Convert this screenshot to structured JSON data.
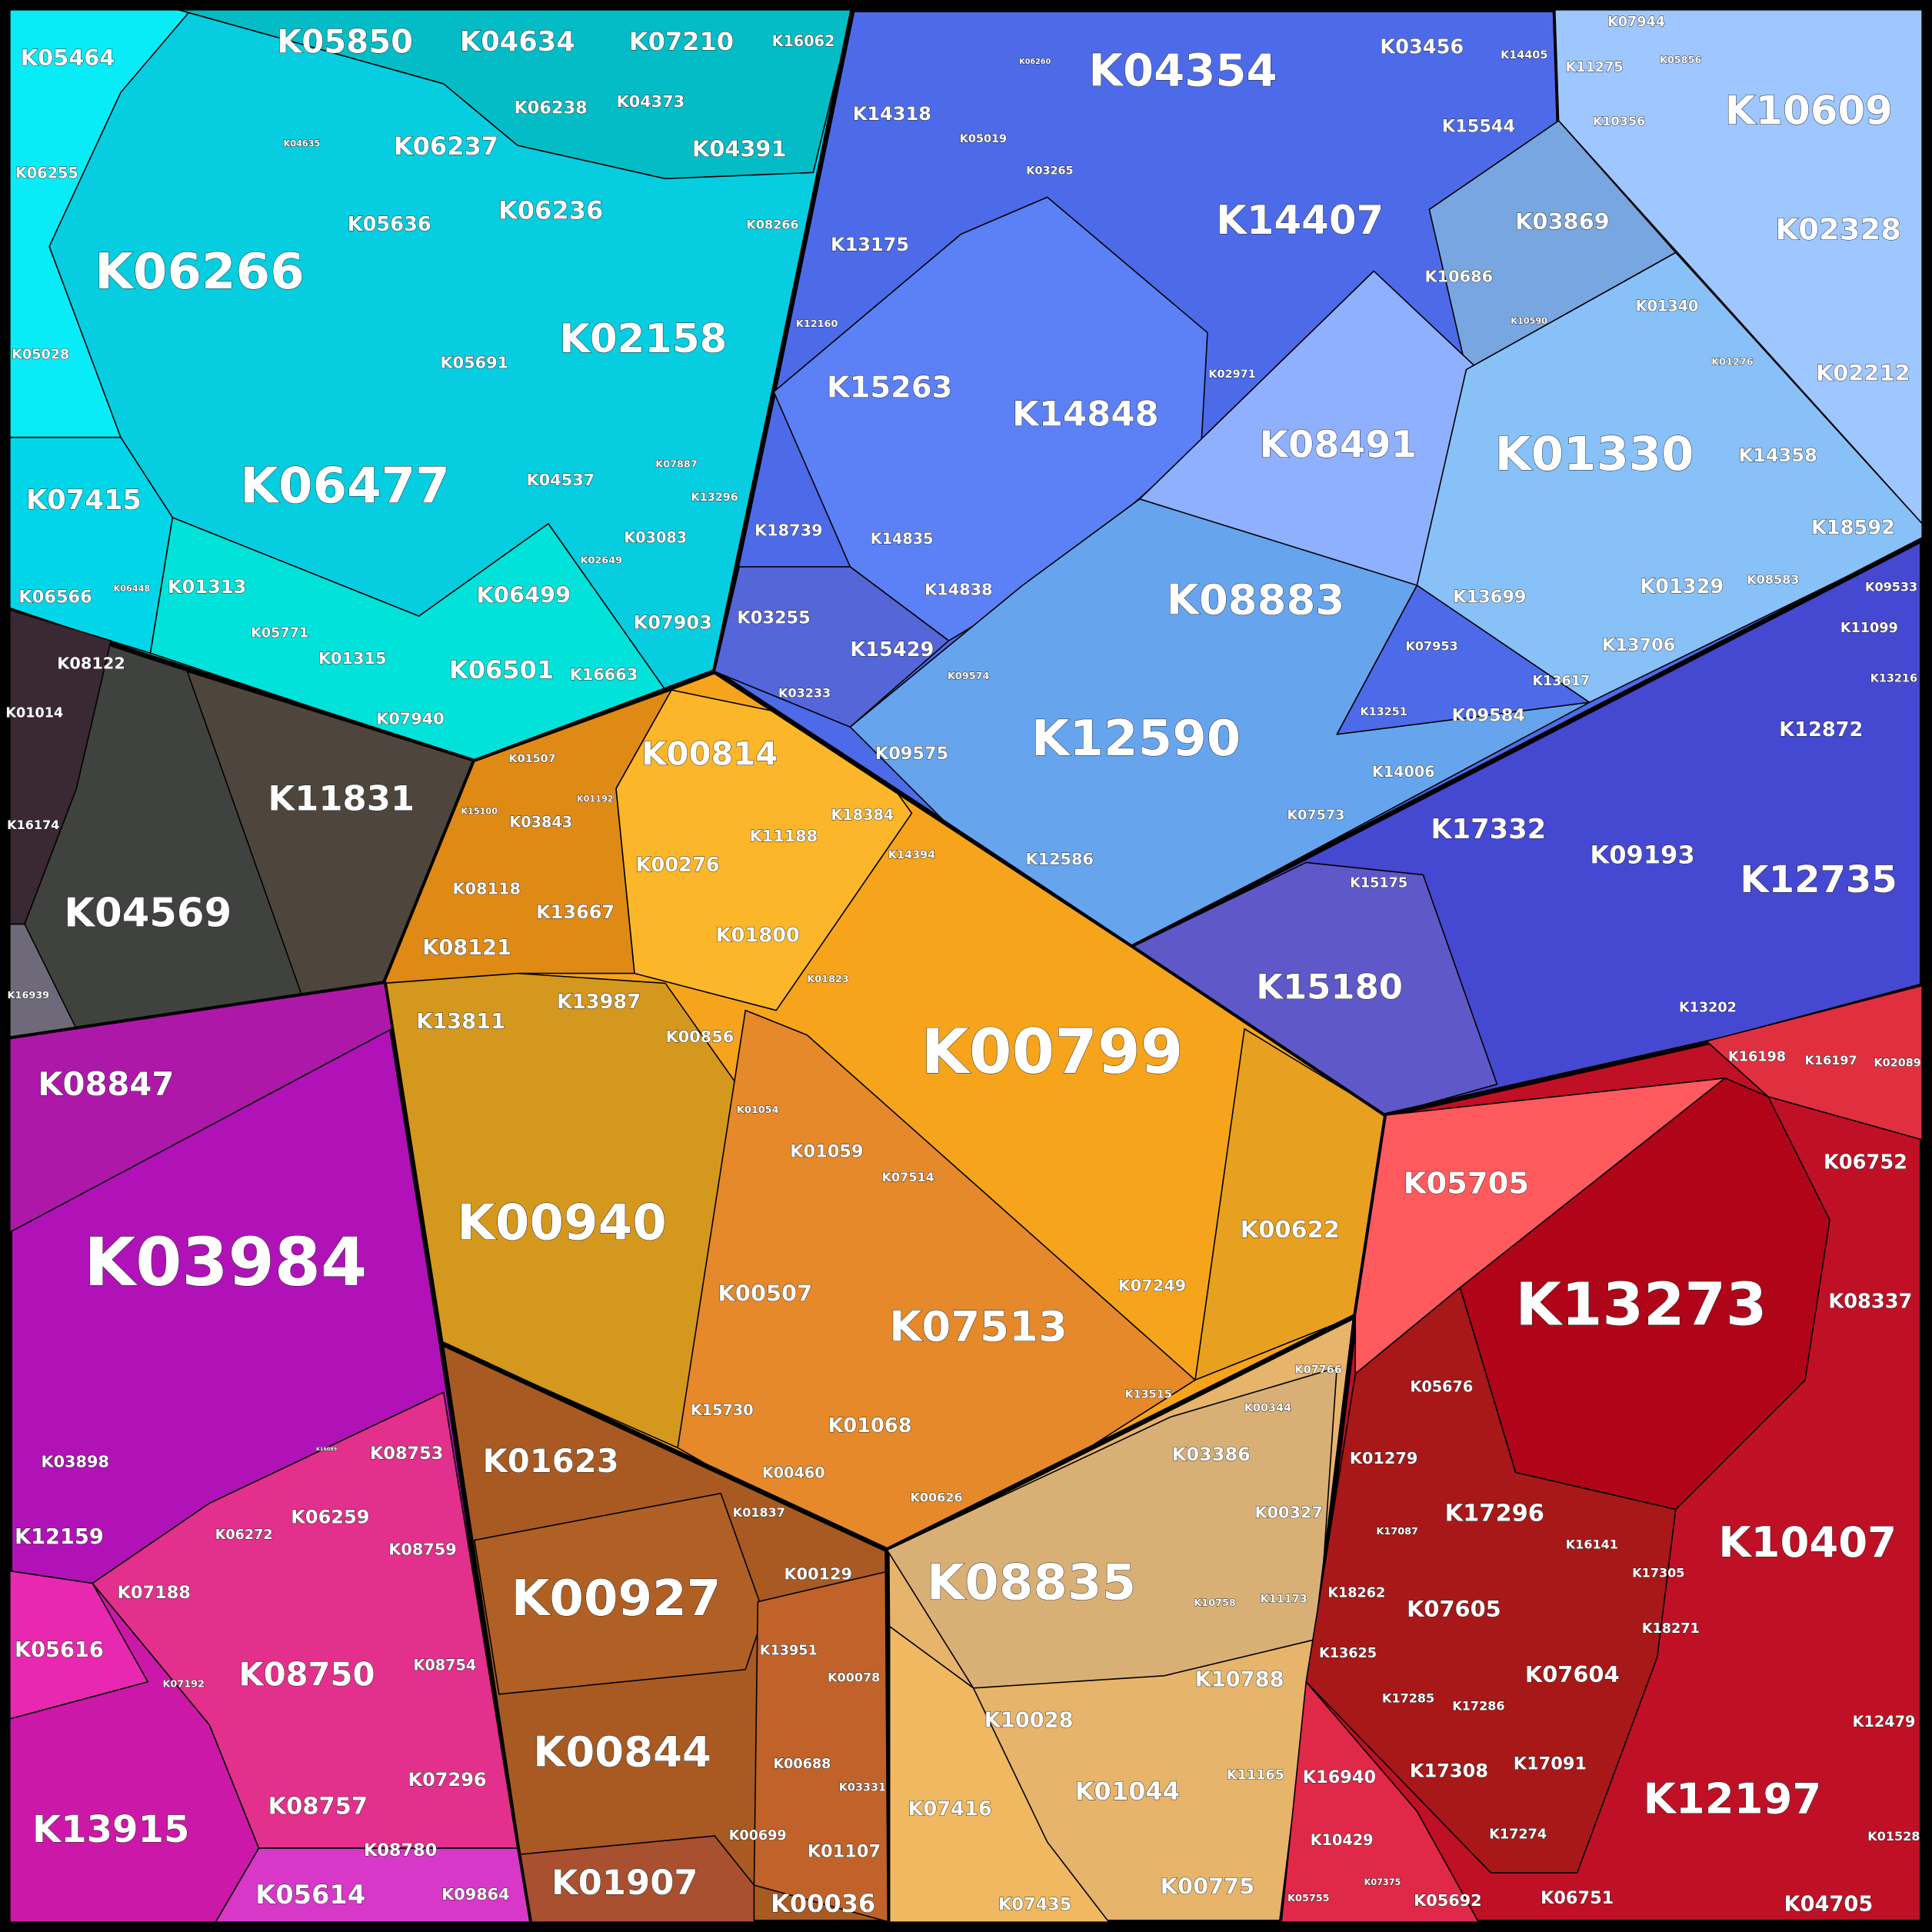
{
  "cells": [
    {
      "label": "K05464"
    },
    {
      "label": "K05850"
    },
    {
      "label": "K04634"
    },
    {
      "label": "K07210"
    },
    {
      "label": "K16062"
    },
    {
      "label": "K04635"
    },
    {
      "label": "K06238"
    },
    {
      "label": "K04373"
    },
    {
      "label": "K06237"
    },
    {
      "label": "K04391"
    },
    {
      "label": "K06255"
    },
    {
      "label": "K05636"
    },
    {
      "label": "K06236"
    },
    {
      "label": "K08266"
    },
    {
      "label": "K06266"
    },
    {
      "label": "K02158"
    },
    {
      "label": "K05028"
    },
    {
      "label": "K05691"
    },
    {
      "label": "K07887"
    },
    {
      "label": "K04537"
    },
    {
      "label": "K13296"
    },
    {
      "label": "K06477"
    },
    {
      "label": "K07415"
    },
    {
      "label": "K03083"
    },
    {
      "label": "K02649"
    },
    {
      "label": "K01313"
    },
    {
      "label": "K06448"
    },
    {
      "label": "K06566"
    },
    {
      "label": "K06499"
    },
    {
      "label": "K07903"
    },
    {
      "label": "K05771"
    },
    {
      "label": "K06501"
    },
    {
      "label": "K16663"
    },
    {
      "label": "K01315"
    },
    {
      "label": "K07940"
    },
    {
      "label": "K08122"
    },
    {
      "label": "K01014"
    },
    {
      "label": "K11831"
    },
    {
      "label": "K16174"
    },
    {
      "label": "K04569"
    },
    {
      "label": "K16939"
    },
    {
      "label": "K01507"
    },
    {
      "label": "K00814"
    },
    {
      "label": "K01192"
    },
    {
      "label": "K15100"
    },
    {
      "label": "K03843"
    },
    {
      "label": "K18384"
    },
    {
      "label": "K11188"
    },
    {
      "label": "K14394"
    },
    {
      "label": "K00276"
    },
    {
      "label": "K08118"
    },
    {
      "label": "K13667"
    },
    {
      "label": "K01800"
    },
    {
      "label": "K08121"
    },
    {
      "label": "K01823"
    },
    {
      "label": "K13987"
    },
    {
      "label": "K13811"
    },
    {
      "label": "K00856"
    },
    {
      "label": "K00799"
    },
    {
      "label": "K01054"
    },
    {
      "label": "K01059"
    },
    {
      "label": "K07514"
    },
    {
      "label": "K00940"
    },
    {
      "label": "K00622"
    },
    {
      "label": "K00507"
    },
    {
      "label": "K07513"
    },
    {
      "label": "K07249"
    },
    {
      "label": "K13515"
    },
    {
      "label": "K15730"
    },
    {
      "label": "K01068"
    },
    {
      "label": "K00460"
    },
    {
      "label": "K00626"
    },
    {
      "label": "K01623"
    },
    {
      "label": "K01837"
    },
    {
      "label": "K00129"
    },
    {
      "label": "K00927"
    },
    {
      "label": "K13951"
    },
    {
      "label": "K00078"
    },
    {
      "label": "K00844"
    },
    {
      "label": "K00688"
    },
    {
      "label": "K03331"
    },
    {
      "label": "K00699"
    },
    {
      "label": "K01107"
    },
    {
      "label": "K01907"
    },
    {
      "label": "K00036"
    },
    {
      "label": "K07766"
    },
    {
      "label": "K00344"
    },
    {
      "label": "K03386"
    },
    {
      "label": "K00327"
    },
    {
      "label": "K08835"
    },
    {
      "label": "K10758"
    },
    {
      "label": "K11173"
    },
    {
      "label": "K10788"
    },
    {
      "label": "K10028"
    },
    {
      "label": "K01044"
    },
    {
      "label": "K11165"
    },
    {
      "label": "K07416"
    },
    {
      "label": "K00775"
    },
    {
      "label": "K07435"
    },
    {
      "label": "K08847"
    },
    {
      "label": "K03984"
    },
    {
      "label": "K16089"
    },
    {
      "label": "K08753"
    },
    {
      "label": "K03898"
    },
    {
      "label": "K06259"
    },
    {
      "label": "K06272"
    },
    {
      "label": "K12159"
    },
    {
      "label": "K08759"
    },
    {
      "label": "K07188"
    },
    {
      "label": "K05616"
    },
    {
      "label": "K08750"
    },
    {
      "label": "K08754"
    },
    {
      "label": "K07192"
    },
    {
      "label": "K07296"
    },
    {
      "label": "K08757"
    },
    {
      "label": "K13915"
    },
    {
      "label": "K08780"
    },
    {
      "label": "K05614"
    },
    {
      "label": "K09864"
    },
    {
      "label": "K07944"
    },
    {
      "label": "K06260"
    },
    {
      "label": "K04354"
    },
    {
      "label": "K03456"
    },
    {
      "label": "K14405"
    },
    {
      "label": "K11275"
    },
    {
      "label": "K05856"
    },
    {
      "label": "K10609"
    },
    {
      "label": "K14318"
    },
    {
      "label": "K10356"
    },
    {
      "label": "K15544"
    },
    {
      "label": "K05019"
    },
    {
      "label": "K03265"
    },
    {
      "label": "K14407"
    },
    {
      "label": "K03869"
    },
    {
      "label": "K13175"
    },
    {
      "label": "K02328"
    },
    {
      "label": "K10686"
    },
    {
      "label": "K12160"
    },
    {
      "label": "K01340"
    },
    {
      "label": "K10590"
    },
    {
      "label": "K01276"
    },
    {
      "label": "K02212"
    },
    {
      "label": "K02971"
    },
    {
      "label": "K15263"
    },
    {
      "label": "K14848"
    },
    {
      "label": "K08491"
    },
    {
      "label": "K01330"
    },
    {
      "label": "K14358"
    },
    {
      "label": "K18739"
    },
    {
      "label": "K14835"
    },
    {
      "label": "K18592"
    },
    {
      "label": "K08883"
    },
    {
      "label": "K13699"
    },
    {
      "label": "K01329"
    },
    {
      "label": "K08583"
    },
    {
      "label": "K14838"
    },
    {
      "label": "K03255"
    },
    {
      "label": "K15429"
    },
    {
      "label": "K07953"
    },
    {
      "label": "K13706"
    },
    {
      "label": "K09574"
    },
    {
      "label": "K03233"
    },
    {
      "label": "K13617"
    },
    {
      "label": "K13251"
    },
    {
      "label": "K09584"
    },
    {
      "label": "K12590"
    },
    {
      "label": "K09575"
    },
    {
      "label": "K14006"
    },
    {
      "label": "K07573"
    },
    {
      "label": "K12586"
    },
    {
      "label": "K09533"
    },
    {
      "label": "K11099"
    },
    {
      "label": "K13216"
    },
    {
      "label": "K12872"
    },
    {
      "label": "K17332"
    },
    {
      "label": "K09193"
    },
    {
      "label": "K12735"
    },
    {
      "label": "K15175"
    },
    {
      "label": "K15180"
    },
    {
      "label": "K13202"
    },
    {
      "label": "K16198"
    },
    {
      "label": "K16197"
    },
    {
      "label": "K02089"
    },
    {
      "label": "K06752"
    },
    {
      "label": "K05705"
    },
    {
      "label": "K13273"
    },
    {
      "label": "K08337"
    },
    {
      "label": "K05676"
    },
    {
      "label": "K01279"
    },
    {
      "label": "K17296"
    },
    {
      "label": "K17087"
    },
    {
      "label": "K16141"
    },
    {
      "label": "K10407"
    },
    {
      "label": "K17305"
    },
    {
      "label": "K18262"
    },
    {
      "label": "K07605"
    },
    {
      "label": "K18271"
    },
    {
      "label": "K13625"
    },
    {
      "label": "K07604"
    },
    {
      "label": "K17285"
    },
    {
      "label": "K17286"
    },
    {
      "label": "K16940"
    },
    {
      "label": "K17308"
    },
    {
      "label": "K17091"
    },
    {
      "label": "K12479"
    },
    {
      "label": "K12197"
    },
    {
      "label": "K10429"
    },
    {
      "label": "K17274"
    },
    {
      "label": "K01528"
    },
    {
      "label": "K07375"
    },
    {
      "label": "K05755"
    },
    {
      "label": "K05692"
    },
    {
      "label": "K06751"
    },
    {
      "label": "K04705"
    }
  ]
}
